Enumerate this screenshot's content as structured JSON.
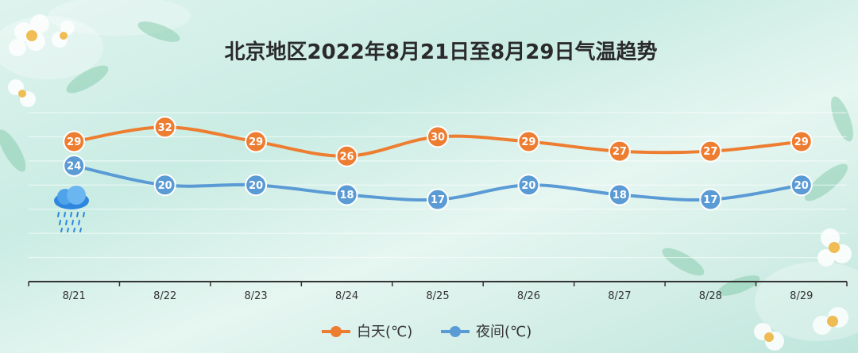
{
  "chart_data": {
    "type": "line",
    "title": "北京地区2022年8月21日至8月29日气温趋势",
    "categories": [
      "8/21",
      "8/22",
      "8/23",
      "8/24",
      "8/25",
      "8/26",
      "8/27",
      "8/28",
      "8/29"
    ],
    "series": [
      {
        "name": "白天(℃)",
        "color": "#ed7d31",
        "values": [
          29,
          32,
          29,
          26,
          30,
          29,
          27,
          27,
          29
        ]
      },
      {
        "name": "夜间(℃)",
        "color": "#5b9bd5",
        "values": [
          24,
          20,
          20,
          18,
          17,
          20,
          18,
          17,
          20
        ]
      }
    ],
    "xlabel": "",
    "ylabel": "",
    "ylim": [
      0,
      35
    ],
    "grid": true,
    "legend_position": "bottom",
    "smooth": true,
    "icons": [
      "rain-cloud-icon"
    ]
  }
}
